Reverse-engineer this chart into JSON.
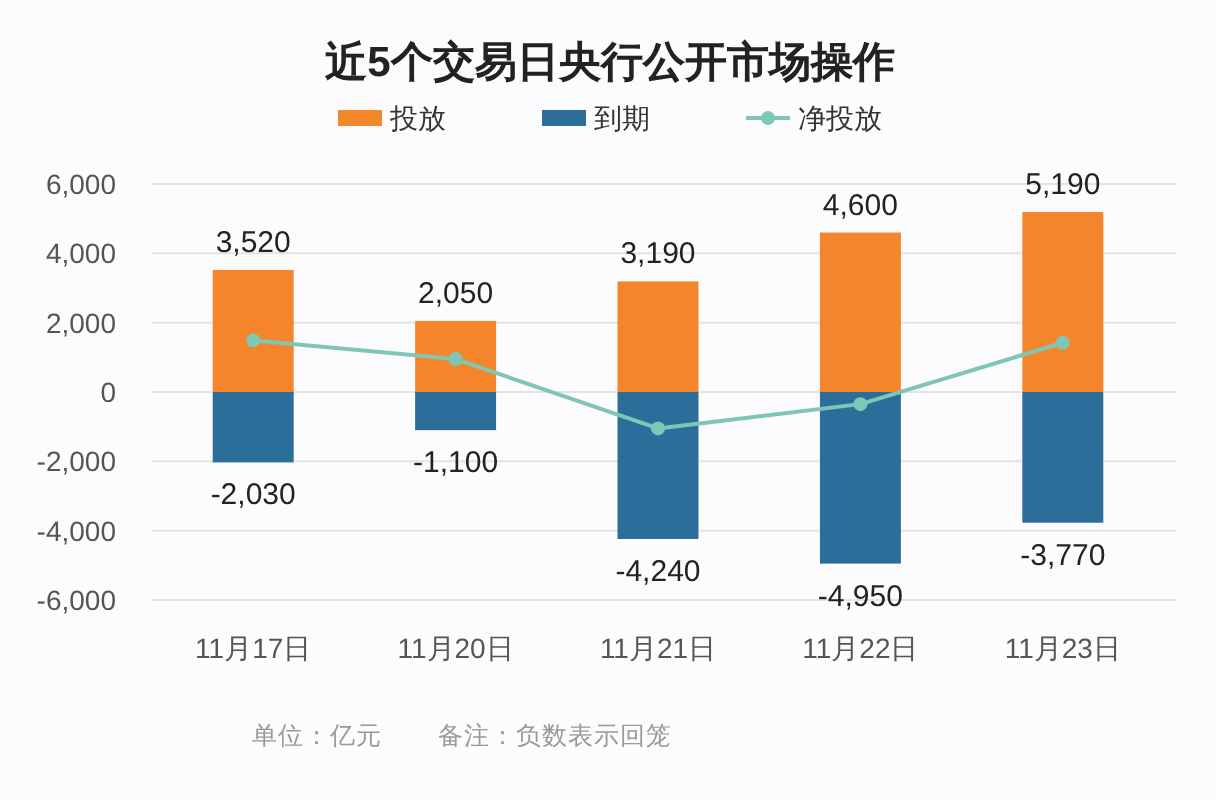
{
  "chart_data": {
    "type": "bar",
    "title": "近5个交易日央行公开市场操作",
    "categories": [
      "11月17日",
      "11月20日",
      "11月21日",
      "11月22日",
      "11月23日"
    ],
    "stacked": true,
    "series": [
      {
        "name": "投放",
        "color": "#f4852a",
        "values": [
          3520,
          2050,
          3190,
          4600,
          5190
        ],
        "value_labels": [
          "3,520",
          "2,050",
          "3,190",
          "4,600",
          "5,190"
        ]
      },
      {
        "name": "到期",
        "color": "#2b6e9a",
        "values": [
          -2030,
          -1100,
          -4240,
          -4950,
          -3770
        ],
        "value_labels": [
          "-2,030",
          "-1,100",
          "-4,240",
          "-4,950",
          "-3,770"
        ]
      },
      {
        "name": "净投放",
        "type": "line",
        "color": "#7fc6b6",
        "marker": "circle",
        "values": [
          1490,
          950,
          -1050,
          -350,
          1420
        ]
      }
    ],
    "ylim": [
      -6000,
      6000
    ],
    "yticks": [
      {
        "value": -6000,
        "label": "-6,000"
      },
      {
        "value": -4000,
        "label": "-4,000"
      },
      {
        "value": -2000,
        "label": "-2,000"
      },
      0,
      {
        "value": 2000,
        "label": "2,000"
      },
      {
        "value": 4000,
        "label": "4,000"
      },
      {
        "value": 6000,
        "label": "6,000"
      }
    ],
    "grid": "y",
    "legend": "top",
    "annotations": [
      "单位：亿元",
      "备注：负数表示回笼"
    ]
  }
}
